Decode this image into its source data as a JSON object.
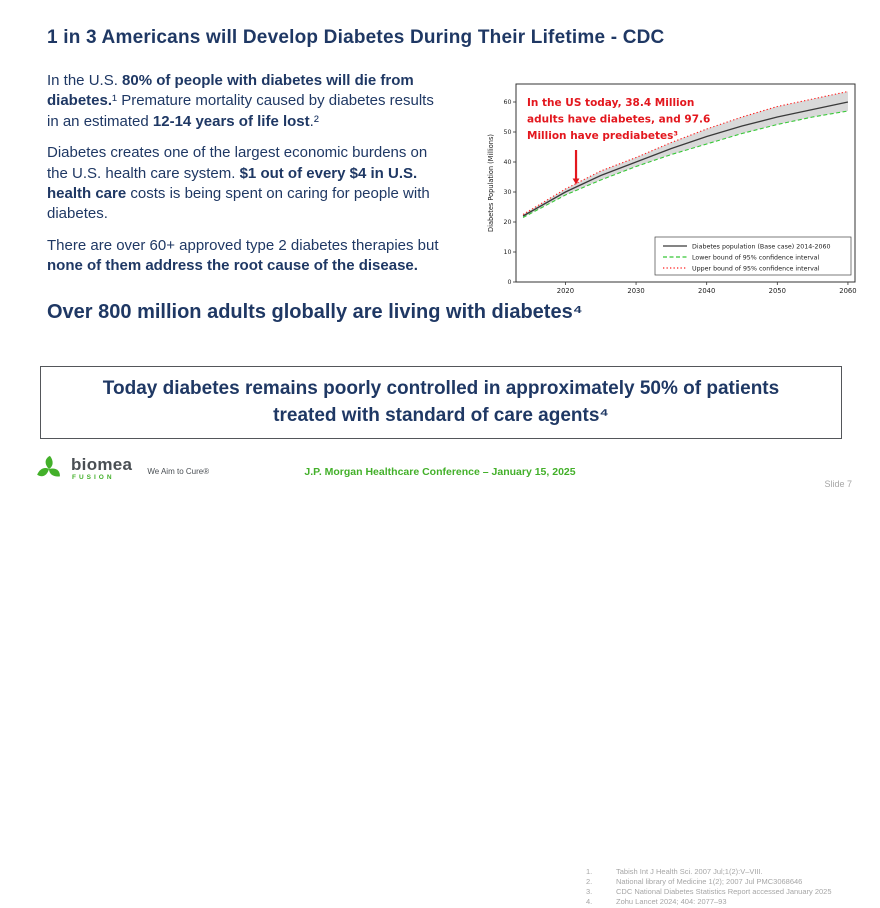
{
  "title": "1 in 3 Americans will Develop Diabetes During Their Lifetime - CDC",
  "paragraphs": [
    [
      {
        "t": "In the U.S. "
      },
      {
        "t": "80% of people with diabetes will die from diabetes.",
        "b": true
      },
      {
        "t": "¹ Premature mortality caused by diabetes results in an estimated "
      },
      {
        "t": "12-14 years of life lost",
        "b": true
      },
      {
        "t": ".²"
      }
    ],
    [
      {
        "t": "Diabetes creates one of the largest economic burdens on the U.S. health care system. "
      },
      {
        "t": "$1 out of every $4 in U.S. health care",
        "b": true
      },
      {
        "t": " costs is being spent on caring for people with diabetes."
      }
    ],
    [
      {
        "t": "There are over 60+ approved type 2 diabetes therapies but "
      },
      {
        "t": "none of them address the root cause of the disease.",
        "b": true
      }
    ]
  ],
  "headline2": "Over 800 million adults globally are living with diabetes⁴",
  "callout": "Today diabetes remains poorly controlled in approximately 50% of patients treated with standard of care agents⁴",
  "chart_data": {
    "type": "line",
    "title": "",
    "xlabel": "",
    "ylabel": "Diabetes Population (Millions)",
    "xlim": [
      2013,
      2061
    ],
    "ylim": [
      0,
      66
    ],
    "x_ticks": [
      2020,
      2030,
      2040,
      2050,
      2060
    ],
    "y_ticks": [
      0,
      10,
      20,
      30,
      40,
      50,
      60
    ],
    "grid": false,
    "legend_position": "bottom-right",
    "band_fill": "#d9d9d9",
    "x": [
      2014,
      2020,
      2025,
      2030,
      2035,
      2040,
      2045,
      2050,
      2055,
      2060
    ],
    "series": [
      {
        "name": "Diabetes population (Base case) 2014-2060",
        "style": "solid",
        "color": "#3a3a3a",
        "values": [
          22.0,
          30.0,
          35.5,
          40.0,
          44.5,
          48.5,
          52.0,
          55.0,
          57.5,
          60.0
        ]
      },
      {
        "name": "Lower bound of 95% confidence interval",
        "style": "dashed",
        "color": "#37c837",
        "values": [
          21.5,
          29.0,
          34.0,
          38.5,
          42.5,
          46.0,
          49.5,
          52.5,
          55.0,
          57.0
        ]
      },
      {
        "name": "Upper bound of 95% confidence interval",
        "style": "dotted",
        "color": "#ff1f1f",
        "values": [
          22.5,
          31.0,
          37.0,
          41.5,
          46.5,
          51.0,
          55.0,
          58.5,
          61.0,
          63.5
        ]
      }
    ],
    "annotation": {
      "lines": [
        "In the US today, 38.4 Million",
        "adults have diabetes, and 97.6",
        "Million have prediabetes³"
      ],
      "color": "#e3171e",
      "arrow": {
        "x": 2021.5,
        "y_from": 44,
        "y_to": 32.5
      }
    }
  },
  "footer": {
    "brand": "biomea",
    "brand_sub": "FUSION",
    "tagline": "We Aim to Cure®",
    "conference": "J.P. Morgan Healthcare Conference – January 15, 2025",
    "references": [
      {
        "num": "1.",
        "text": "Tabish Int J Health Sci. 2007 Jul;1(2):V–VIII."
      },
      {
        "num": "2.",
        "text": "National library of Medicine 1(2); 2007 Jul PMC3068646"
      },
      {
        "num": "3.",
        "text": "CDC National Diabetes Statistics Report accessed January 2025"
      },
      {
        "num": "4.",
        "text": "Zohu Lancet 2024; 404: 2077–93"
      }
    ],
    "slide_number": "Slide 7"
  },
  "colors": {
    "navy": "#1F3864",
    "green": "#43B02A",
    "red": "#e3171e",
    "ref_gray": "#A6A6A6"
  }
}
